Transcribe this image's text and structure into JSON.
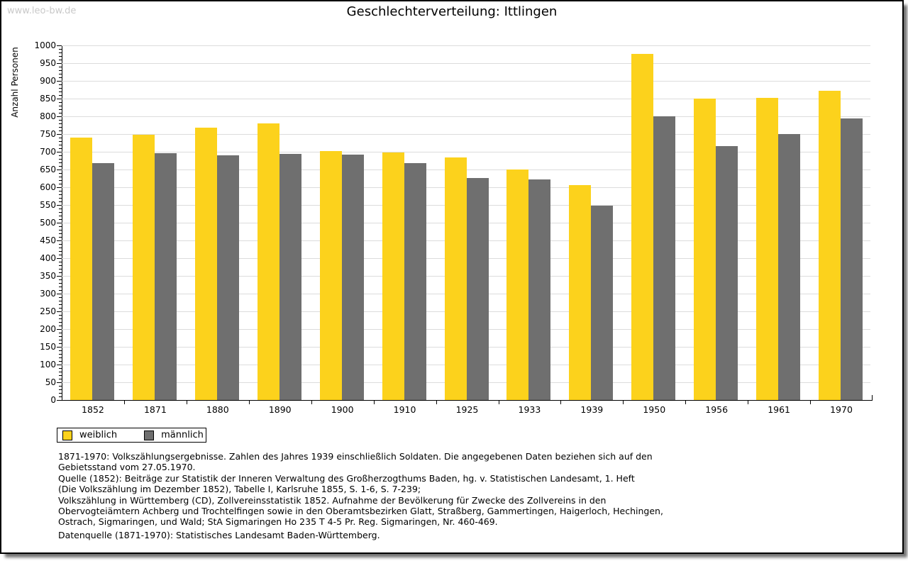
{
  "watermark": "www.leo-bw.de",
  "chart_data": {
    "type": "bar",
    "title": "Geschlechterverteilung: Ittlingen",
    "xlabel": "",
    "ylabel": "Anzahl Personen",
    "ylim": [
      0,
      1000
    ],
    "ytick_step": 50,
    "ytick_minor_step": 10,
    "grid": true,
    "legend_position": "bottom-left",
    "categories": [
      "1852",
      "1871",
      "1880",
      "1890",
      "1900",
      "1910",
      "1925",
      "1933",
      "1939",
      "1950",
      "1956",
      "1961",
      "1970"
    ],
    "series": [
      {
        "name": "weiblich",
        "color": "#FCD21C",
        "values": [
          740,
          749,
          768,
          781,
          702,
          698,
          684,
          650,
          607,
          976,
          851,
          852,
          872
        ]
      },
      {
        "name": "männlich",
        "color": "#6F6F6F",
        "values": [
          668,
          697,
          691,
          695,
          693,
          669,
          626,
          622,
          548,
          800,
          717,
          751,
          794
        ]
      }
    ]
  },
  "legend": {
    "items": [
      {
        "label": "weiblich",
        "color": "#FCD21C"
      },
      {
        "label": "männlich",
        "color": "#6F6F6F"
      }
    ]
  },
  "notes": {
    "lines": [
      "1871-1970: Volkszählungsergebnisse. Zahlen des Jahres 1939 einschließlich Soldaten. Die angegebenen Daten beziehen sich auf den",
      "Gebietsstand vom 27.05.1970.",
      "Quelle (1852): Beiträge zur Statistik der Inneren Verwaltung des Großherzogthums Baden, hg. v. Statistischen Landesamt, 1. Heft",
      "(Die Volkszählung im Dezember 1852), Tabelle I, Karlsruhe 1855, S. 1-6, S. 7-239;",
      "Volkszählung in Württemberg (CD), Zollvereinsstatistik 1852. Aufnahme der Bevölkerung für Zwecke des Zollvereins in den",
      "Obervogteiämtern Achberg und Trochtelfingen sowie in den Oberamtsbezirken Glatt, Straßberg, Gammertingen, Haigerloch, Hechingen,",
      "Ostrach, Sigmaringen, und Wald; StA Sigmaringen Ho 235 T 4-5 Pr. Reg. Sigmaringen, Nr. 460-469."
    ],
    "datasource": "Datenquelle (1871-1970): Statistisches Landesamt Baden-Württemberg."
  }
}
